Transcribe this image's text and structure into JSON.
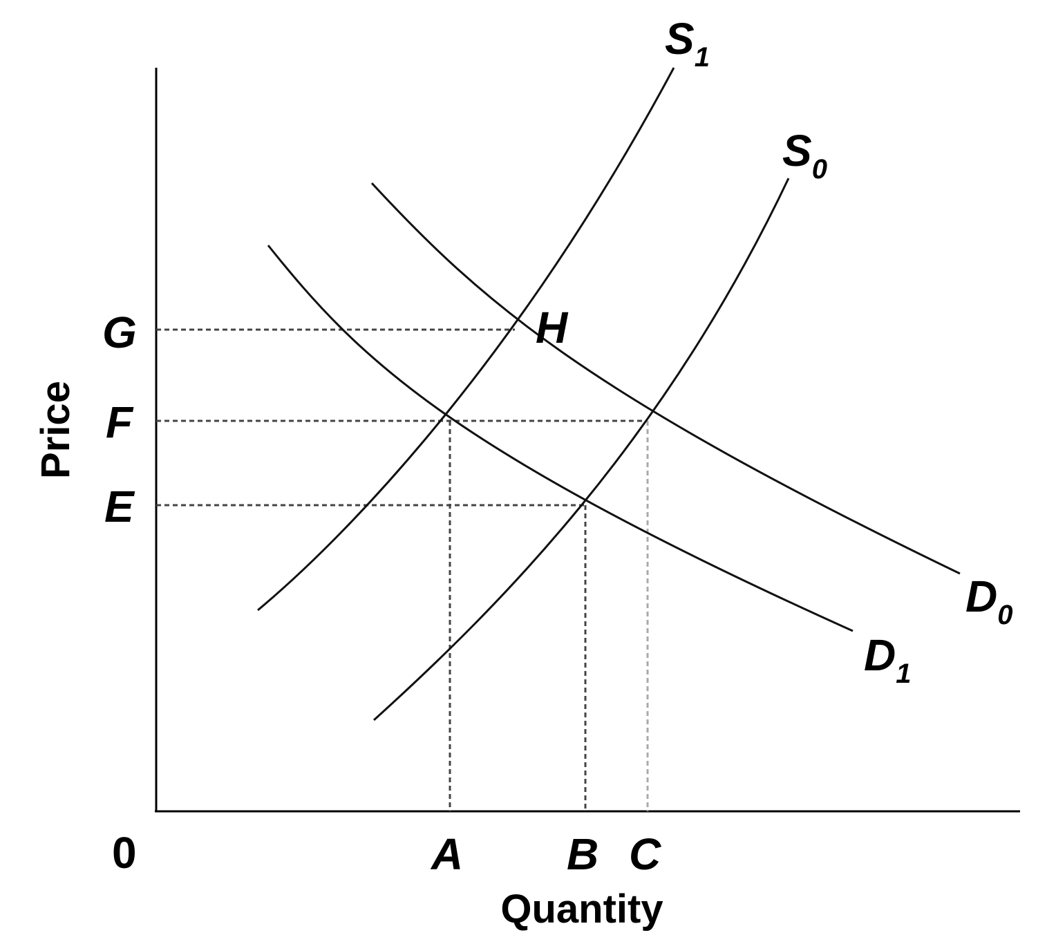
{
  "axes": {
    "x_title": "Quantity",
    "y_title": "Price",
    "origin": "0"
  },
  "x_ticks": {
    "a": "A",
    "b": "B",
    "c": "C"
  },
  "y_ticks": {
    "g": "G",
    "f": "F",
    "e": "E"
  },
  "curves": {
    "s1": {
      "letter": "S",
      "sub": "1"
    },
    "s0": {
      "letter": "S",
      "sub": "0"
    },
    "d0": {
      "letter": "D",
      "sub": "0"
    },
    "d1": {
      "letter": "D",
      "sub": "1"
    }
  },
  "points": {
    "h": "H"
  }
}
